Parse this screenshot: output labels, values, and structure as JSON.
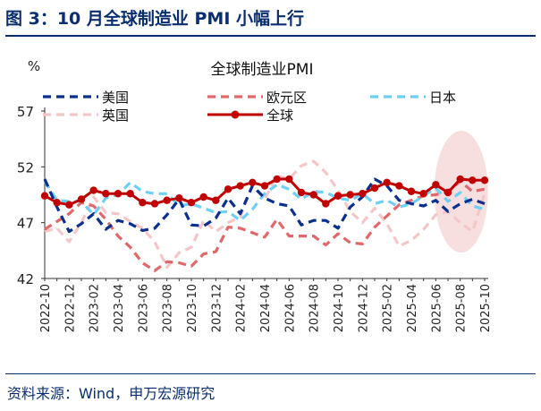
{
  "figure": {
    "title": "图 3：10 月全球制造业 PMI 小幅上行",
    "source": "资料来源：Wind，申万宏源研究"
  },
  "chart_data": {
    "type": "line",
    "title": "全球制造业PMI",
    "ylabel": "%",
    "ylim": [
      42,
      57
    ],
    "yticks": [
      42,
      47,
      52,
      57
    ],
    "grid": false,
    "legend_placement": "top",
    "x": [
      "2022-10",
      "2022-11",
      "2022-12",
      "2023-01",
      "2023-02",
      "2023-03",
      "2023-04",
      "2023-05",
      "2023-06",
      "2023-07",
      "2023-08",
      "2023-09",
      "2023-10",
      "2023-11",
      "2023-12",
      "2024-01",
      "2024-02",
      "2024-03",
      "2024-04",
      "2024-05",
      "2024-06",
      "2024-07",
      "2024-08",
      "2024-09",
      "2024-10",
      "2024-11",
      "2024-12",
      "2025-01",
      "2025-02",
      "2025-03",
      "2025-04",
      "2025-05",
      "2025-06",
      "2025-07",
      "2025-08",
      "2025-09",
      "2025-10"
    ],
    "xtick_labels": [
      "2022-10",
      "2022-12",
      "2023-02",
      "2023-04",
      "2023-06",
      "2023-08",
      "2023-10",
      "2023-12",
      "2024-02",
      "2024-04",
      "2024-06",
      "2024-08",
      "2024-10",
      "2024-12",
      "2025-02",
      "2025-04",
      "2025-06",
      "2025-08",
      "2025-10"
    ],
    "series": [
      {
        "name": "美国",
        "color": "#0a2f8c",
        "style": "dash",
        "values": [
          50.9,
          48.4,
          46.2,
          46.9,
          47.8,
          46.4,
          47.2,
          46.9,
          46.3,
          46.5,
          47.7,
          49.1,
          46.8,
          46.7,
          47.4,
          49.2,
          47.8,
          50.3,
          49.2,
          48.7,
          48.5,
          46.8,
          47.2,
          47.2,
          46.5,
          48.4,
          49.3,
          50.9,
          50.3,
          49.0,
          48.7,
          48.5,
          49.0,
          48.0,
          48.7,
          49.1,
          48.7
        ]
      },
      {
        "name": "欧元区",
        "color": "#e0676a",
        "style": "dash",
        "values": [
          46.4,
          47.1,
          47.8,
          48.8,
          48.5,
          47.3,
          45.8,
          44.8,
          43.4,
          42.7,
          43.5,
          43.4,
          43.1,
          44.2,
          44.4,
          46.6,
          46.5,
          46.1,
          45.7,
          47.3,
          45.8,
          45.8,
          45.8,
          45.0,
          46.0,
          45.2,
          45.1,
          46.6,
          47.6,
          48.6,
          49.0,
          49.4,
          49.5,
          49.8,
          50.7,
          49.8,
          50.0
        ]
      },
      {
        "name": "日本",
        "color": "#6ed0f4",
        "style": "dash",
        "values": [
          50.7,
          49.0,
          48.9,
          48.9,
          47.7,
          49.2,
          49.5,
          50.6,
          49.8,
          49.6,
          49.6,
          48.5,
          48.7,
          48.3,
          47.9,
          48.0,
          47.2,
          48.2,
          49.6,
          50.4,
          50.0,
          49.1,
          49.8,
          49.7,
          49.2,
          49.0,
          49.6,
          48.7,
          49.0,
          48.4,
          48.7,
          49.4,
          50.1,
          48.9,
          49.7,
          48.5,
          48.2
        ]
      },
      {
        "name": "英国",
        "color": "#f4c6c8",
        "style": "dash",
        "values": [
          46.2,
          46.5,
          45.3,
          47.0,
          49.3,
          47.9,
          47.8,
          47.1,
          46.5,
          45.3,
          43.0,
          44.3,
          44.8,
          47.2,
          46.2,
          47.0,
          47.5,
          50.3,
          49.1,
          51.2,
          50.9,
          52.1,
          52.5,
          51.5,
          49.9,
          48.0,
          47.0,
          48.3,
          46.9,
          44.9,
          45.4,
          46.4,
          47.7,
          48.0,
          47.0,
          46.2,
          49.6
        ]
      },
      {
        "name": "全球",
        "color": "#c00000",
        "style": "solid-marker",
        "values": [
          49.4,
          48.8,
          48.6,
          49.1,
          49.9,
          49.6,
          49.6,
          49.6,
          48.8,
          48.7,
          49.0,
          49.2,
          48.8,
          49.3,
          49.0,
          50.0,
          50.3,
          50.6,
          50.3,
          50.9,
          50.9,
          49.7,
          49.5,
          48.7,
          49.4,
          49.5,
          49.6,
          50.1,
          50.6,
          50.3,
          49.8,
          49.6,
          50.4,
          49.7,
          50.9,
          50.8,
          50.8
        ]
      }
    ],
    "annotation": "highlight ellipse around 2025-06 to 2025-10"
  }
}
